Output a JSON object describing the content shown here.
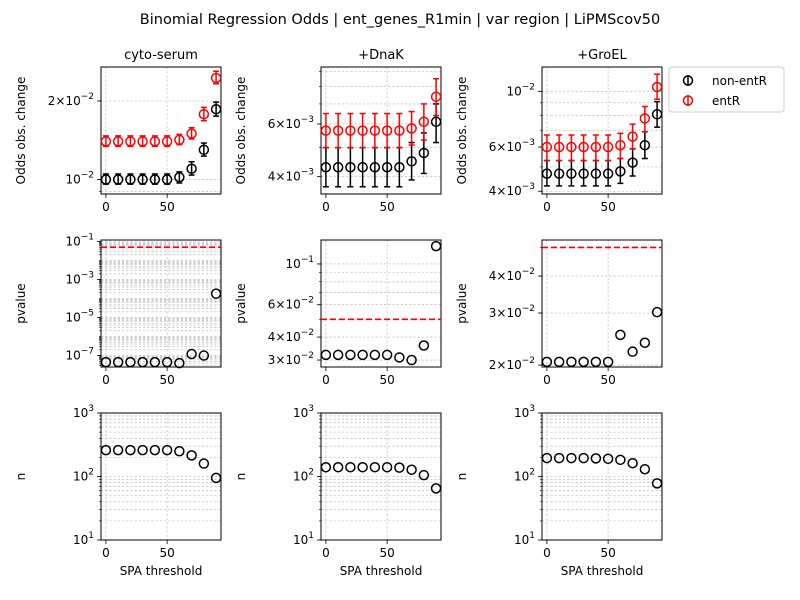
{
  "figure": {
    "suptitle": "Binomial Regression Odds | ent_genes_R1min | var region | LiPMScov50"
  },
  "legend": {
    "placement": "upper-right",
    "entries": [
      {
        "label": "non-entR",
        "color": "#000000"
      },
      {
        "label": "entR",
        "color": "#ff0000"
      }
    ]
  },
  "chart_data": [
    {
      "type": "scatter",
      "panel": "odds-cyto-serum",
      "title": "cyto-serum",
      "xlabel": "",
      "ylabel": "Odds obs. change",
      "yscale": "log",
      "xlim": [
        -4,
        94
      ],
      "xticks": [
        0,
        50
      ],
      "ylim": [
        0.0088,
        0.027
      ],
      "yticks": [
        {
          "value": 0.01,
          "base": "10",
          "exp": "−2",
          "mantissa": ""
        },
        {
          "value": 0.02,
          "base": "10",
          "exp": "−2",
          "mantissa": "2"
        }
      ],
      "grid": true,
      "error_bars": true,
      "x": [
        0,
        10,
        20,
        30,
        40,
        50,
        60,
        70,
        80,
        90
      ],
      "series": [
        {
          "name": "non-entR",
          "color": "#000000",
          "values": [
            0.01,
            0.01,
            0.01,
            0.01,
            0.01,
            0.01,
            0.0102,
            0.011,
            0.013,
            0.0186
          ],
          "lower": [
            0.0096,
            0.0096,
            0.0096,
            0.0096,
            0.0096,
            0.0096,
            0.0097,
            0.0104,
            0.0123,
            0.0175
          ],
          "upper": [
            0.0105,
            0.0105,
            0.0105,
            0.0105,
            0.0105,
            0.0105,
            0.0107,
            0.0117,
            0.0138,
            0.0198
          ]
        },
        {
          "name": "entR",
          "color": "#ff0000",
          "values": [
            0.014,
            0.014,
            0.014,
            0.014,
            0.014,
            0.014,
            0.0142,
            0.015,
            0.0178,
            0.0245
          ],
          "lower": [
            0.0134,
            0.0134,
            0.0134,
            0.0134,
            0.0134,
            0.0134,
            0.0136,
            0.0143,
            0.0168,
            0.0233
          ],
          "upper": [
            0.0147,
            0.0147,
            0.0147,
            0.0147,
            0.0147,
            0.0147,
            0.0149,
            0.0158,
            0.0189,
            0.026
          ]
        }
      ]
    },
    {
      "type": "scatter",
      "panel": "odds-dnak",
      "title": "+DnaK",
      "xlabel": "",
      "ylabel": "Odds obs. change",
      "yscale": "log",
      "xlim": [
        -4,
        94
      ],
      "xticks": [
        0,
        50
      ],
      "ylim": [
        0.0035,
        0.0093
      ],
      "yticks": [
        {
          "value": 0.004,
          "base": "10",
          "exp": "−3",
          "mantissa": "4"
        },
        {
          "value": 0.006,
          "base": "10",
          "exp": "−3",
          "mantissa": "6"
        }
      ],
      "grid": true,
      "error_bars": true,
      "x": [
        0,
        10,
        20,
        30,
        40,
        50,
        60,
        70,
        80,
        90
      ],
      "series": [
        {
          "name": "non-entR",
          "color": "#000000",
          "values": [
            0.0043,
            0.0043,
            0.0043,
            0.0043,
            0.0043,
            0.0043,
            0.0043,
            0.0045,
            0.0048,
            0.0061
          ],
          "lower": [
            0.0037,
            0.0037,
            0.0037,
            0.0037,
            0.0037,
            0.0037,
            0.0037,
            0.0039,
            0.0041,
            0.0052
          ],
          "upper": [
            0.005,
            0.005,
            0.005,
            0.005,
            0.005,
            0.005,
            0.005,
            0.0052,
            0.0056,
            0.007
          ]
        },
        {
          "name": "entR",
          "color": "#ff0000",
          "values": [
            0.0057,
            0.0057,
            0.0057,
            0.0057,
            0.0057,
            0.0057,
            0.0057,
            0.0058,
            0.0061,
            0.0074
          ],
          "lower": [
            0.005,
            0.005,
            0.005,
            0.005,
            0.005,
            0.005,
            0.005,
            0.0051,
            0.0053,
            0.0064
          ],
          "upper": [
            0.0065,
            0.0065,
            0.0065,
            0.0065,
            0.0065,
            0.0065,
            0.0065,
            0.0066,
            0.007,
            0.0085
          ]
        }
      ]
    },
    {
      "type": "scatter",
      "panel": "odds-groel",
      "title": "+GroEL",
      "xlabel": "",
      "ylabel": "Odds obs. change",
      "yscale": "log",
      "xlim": [
        -4,
        94
      ],
      "xticks": [
        0,
        50
      ],
      "ylim": [
        0.0039,
        0.0125
      ],
      "yticks": [
        {
          "value": 0.004,
          "base": "10",
          "exp": "−3",
          "mantissa": "4"
        },
        {
          "value": 0.006,
          "base": "10",
          "exp": "−3",
          "mantissa": "6"
        },
        {
          "value": 0.01,
          "base": "10",
          "exp": "−2",
          "mantissa": ""
        }
      ],
      "grid": true,
      "error_bars": true,
      "x": [
        0,
        10,
        20,
        30,
        40,
        50,
        60,
        70,
        80,
        90
      ],
      "series": [
        {
          "name": "non-entR",
          "color": "#000000",
          "values": [
            0.0047,
            0.0047,
            0.0047,
            0.0047,
            0.0047,
            0.0047,
            0.0048,
            0.0052,
            0.0061,
            0.0081
          ],
          "lower": [
            0.0042,
            0.0042,
            0.0042,
            0.0042,
            0.0042,
            0.0042,
            0.0043,
            0.0046,
            0.0054,
            0.0072
          ],
          "upper": [
            0.0053,
            0.0053,
            0.0053,
            0.0053,
            0.0053,
            0.0053,
            0.0054,
            0.0059,
            0.0069,
            0.0091
          ]
        },
        {
          "name": "entR",
          "color": "#ff0000",
          "values": [
            0.006,
            0.006,
            0.006,
            0.006,
            0.006,
            0.006,
            0.0061,
            0.0066,
            0.0078,
            0.0104
          ],
          "lower": [
            0.0053,
            0.0053,
            0.0053,
            0.0053,
            0.0053,
            0.0053,
            0.0054,
            0.0059,
            0.0069,
            0.0093
          ],
          "upper": [
            0.0067,
            0.0067,
            0.0067,
            0.0067,
            0.0067,
            0.0067,
            0.0068,
            0.0074,
            0.0087,
            0.0117
          ]
        }
      ]
    },
    {
      "type": "scatter",
      "panel": "pvalue-cyto-serum",
      "title": "",
      "xlabel": "",
      "ylabel": "pvalue",
      "yscale": "log",
      "xlim": [
        -4,
        94
      ],
      "xticks": [
        0,
        50
      ],
      "ylim": [
        2.5e-08,
        0.12
      ],
      "yticks": [
        {
          "value": 1e-07,
          "base": "10",
          "exp": "−7",
          "mantissa": ""
        },
        {
          "value": 1e-05,
          "base": "10",
          "exp": "−5",
          "mantissa": ""
        },
        {
          "value": 0.001,
          "base": "10",
          "exp": "−3",
          "mantissa": ""
        },
        {
          "value": 0.1,
          "base": "10",
          "exp": "−1",
          "mantissa": ""
        }
      ],
      "grid": true,
      "hline": 0.05,
      "hline_color": "#ff0000",
      "x": [
        0,
        10,
        20,
        30,
        40,
        50,
        60,
        70,
        80,
        90
      ],
      "series": [
        {
          "name": "",
          "color": "#000000",
          "values": [
            4.5e-08,
            4.5e-08,
            4.5e-08,
            4.5e-08,
            4.5e-08,
            4.5e-08,
            4e-08,
            1.2e-07,
            1e-07,
            0.00018
          ]
        }
      ]
    },
    {
      "type": "scatter",
      "panel": "pvalue-dnak",
      "title": "",
      "xlabel": "",
      "ylabel": "pvalue",
      "yscale": "log",
      "xlim": [
        -4,
        94
      ],
      "xticks": [
        0,
        50
      ],
      "ylim": [
        0.0275,
        0.135
      ],
      "yticks": [
        {
          "value": 0.03,
          "base": "10",
          "exp": "−2",
          "mantissa": "3"
        },
        {
          "value": 0.04,
          "base": "10",
          "exp": "−2",
          "mantissa": "4"
        },
        {
          "value": 0.06,
          "base": "10",
          "exp": "−2",
          "mantissa": "6"
        },
        {
          "value": 0.1,
          "base": "10",
          "exp": "−1",
          "mantissa": ""
        }
      ],
      "grid": true,
      "hline": 0.05,
      "hline_color": "#ff0000",
      "x": [
        0,
        10,
        20,
        30,
        40,
        50,
        60,
        70,
        80,
        90
      ],
      "series": [
        {
          "name": "",
          "color": "#000000",
          "values": [
            0.032,
            0.032,
            0.032,
            0.032,
            0.032,
            0.032,
            0.031,
            0.03,
            0.036,
            0.125
          ]
        }
      ]
    },
    {
      "type": "scatter",
      "panel": "pvalue-groel",
      "title": "",
      "xlabel": "",
      "ylabel": "pvalue",
      "yscale": "log",
      "xlim": [
        -4,
        94
      ],
      "xticks": [
        0,
        50
      ],
      "ylim": [
        0.0197,
        0.053
      ],
      "yticks": [
        {
          "value": 0.02,
          "base": "10",
          "exp": "−2",
          "mantissa": "2"
        },
        {
          "value": 0.03,
          "base": "10",
          "exp": "−2",
          "mantissa": "3"
        },
        {
          "value": 0.04,
          "base": "10",
          "exp": "−2",
          "mantissa": "4"
        }
      ],
      "grid": true,
      "hline": 0.05,
      "hline_color": "#ff0000",
      "x": [
        0,
        10,
        20,
        30,
        40,
        50,
        60,
        70,
        80,
        90
      ],
      "series": [
        {
          "name": "",
          "color": "#000000",
          "values": [
            0.0205,
            0.0205,
            0.0205,
            0.0205,
            0.0205,
            0.0205,
            0.0253,
            0.0222,
            0.0238,
            0.0302
          ]
        }
      ]
    },
    {
      "type": "scatter",
      "panel": "n-cyto-serum",
      "title": "",
      "xlabel": "SPA threshold",
      "ylabel": "n",
      "yscale": "log",
      "xlim": [
        -4,
        94
      ],
      "xticks": [
        0,
        50
      ],
      "ylim": [
        10,
        1000
      ],
      "yticks": [
        {
          "value": 10,
          "base": "10",
          "exp": "1",
          "mantissa": ""
        },
        {
          "value": 100,
          "base": "10",
          "exp": "2",
          "mantissa": ""
        },
        {
          "value": 1000,
          "base": "10",
          "exp": "3",
          "mantissa": ""
        }
      ],
      "grid": true,
      "x": [
        0,
        10,
        20,
        30,
        40,
        50,
        60,
        70,
        80,
        90
      ],
      "series": [
        {
          "name": "",
          "color": "#000000",
          "values": [
            260,
            260,
            260,
            260,
            260,
            260,
            250,
            215,
            160,
            95
          ]
        }
      ]
    },
    {
      "type": "scatter",
      "panel": "n-dnak",
      "title": "",
      "xlabel": "SPA threshold",
      "ylabel": "n",
      "yscale": "log",
      "xlim": [
        -4,
        94
      ],
      "xticks": [
        0,
        50
      ],
      "ylim": [
        10,
        1000
      ],
      "yticks": [
        {
          "value": 10,
          "base": "10",
          "exp": "1",
          "mantissa": ""
        },
        {
          "value": 100,
          "base": "10",
          "exp": "2",
          "mantissa": ""
        },
        {
          "value": 1000,
          "base": "10",
          "exp": "3",
          "mantissa": ""
        }
      ],
      "grid": true,
      "x": [
        0,
        10,
        20,
        30,
        40,
        50,
        60,
        70,
        80,
        90
      ],
      "series": [
        {
          "name": "",
          "color": "#000000",
          "values": [
            140,
            140,
            140,
            140,
            140,
            140,
            138,
            128,
            105,
            65
          ]
        }
      ]
    },
    {
      "type": "scatter",
      "panel": "n-groel",
      "title": "",
      "xlabel": "SPA threshold",
      "ylabel": "n",
      "yscale": "log",
      "xlim": [
        -4,
        94
      ],
      "xticks": [
        0,
        50
      ],
      "ylim": [
        10,
        1000
      ],
      "yticks": [
        {
          "value": 10,
          "base": "10",
          "exp": "1",
          "mantissa": ""
        },
        {
          "value": 100,
          "base": "10",
          "exp": "2",
          "mantissa": ""
        },
        {
          "value": 1000,
          "base": "10",
          "exp": "3",
          "mantissa": ""
        }
      ],
      "grid": true,
      "x": [
        0,
        10,
        20,
        30,
        40,
        50,
        60,
        70,
        80,
        90
      ],
      "series": [
        {
          "name": "",
          "color": "#000000",
          "values": [
            195,
            195,
            195,
            195,
            193,
            190,
            183,
            162,
            130,
            78
          ]
        }
      ]
    }
  ]
}
